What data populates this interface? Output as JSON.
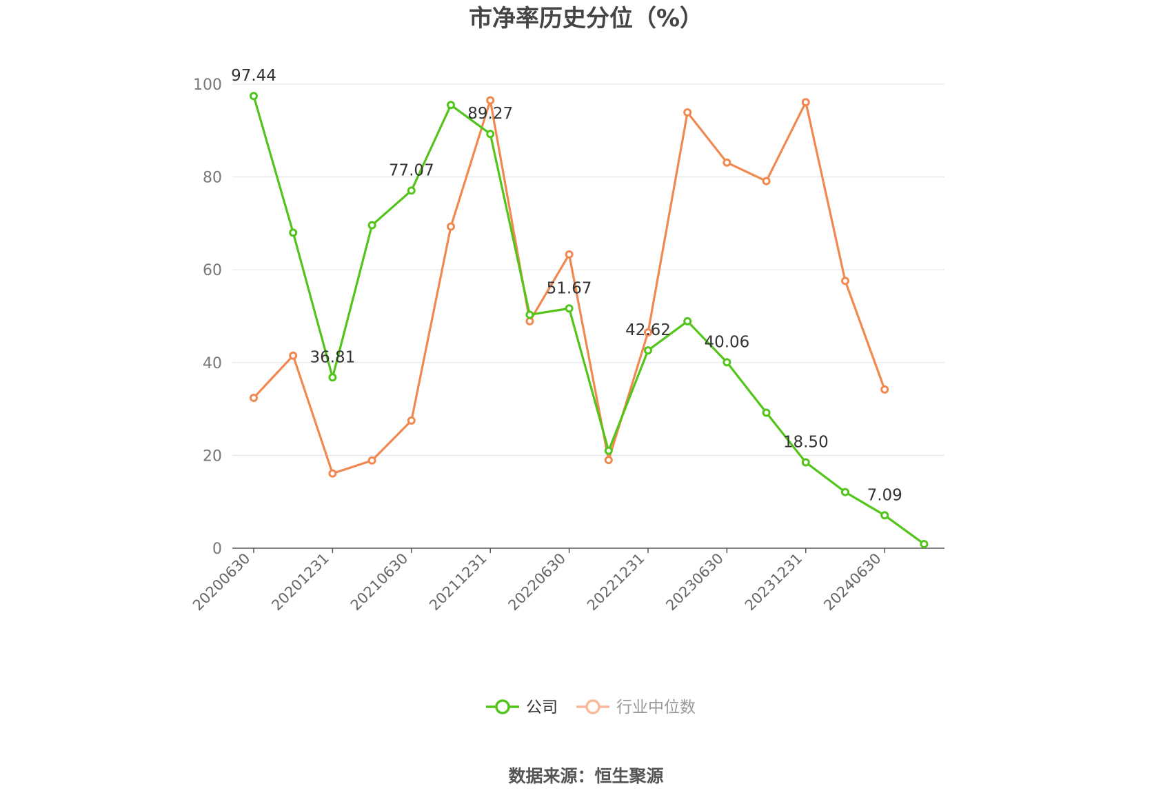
{
  "chart_data": {
    "type": "line",
    "title": "市净率历史分位（%）",
    "source": "数据来源：恒生聚源",
    "ylim": [
      0,
      100
    ],
    "yticks": [
      0,
      20,
      40,
      60,
      80,
      100
    ],
    "grid": true,
    "legend_position": "bottom-center",
    "x": [
      "20200630",
      "20200930",
      "20201231",
      "20210331",
      "20210630",
      "20210930",
      "20211231",
      "20220331",
      "20220630",
      "20220930",
      "20221231",
      "20230331",
      "20230630",
      "20230930",
      "20231231",
      "20240331",
      "20240630",
      "20240930"
    ],
    "x_tick_labels": [
      "20200630",
      "20201231",
      "20210630",
      "20211231",
      "20220630",
      "20221231",
      "20230630",
      "20231231",
      "20240630"
    ],
    "series": [
      {
        "name": "公司",
        "color": "#52c41a",
        "values": [
          97.44,
          68,
          36.81,
          69.6,
          77.07,
          95.5,
          89.27,
          50.3,
          51.67,
          21,
          42.62,
          48.9,
          40.06,
          29.2,
          18.5,
          12.1,
          7.09,
          0.9
        ],
        "labels": [
          "97.44",
          null,
          "36.81",
          null,
          "77.07",
          null,
          "89.27",
          null,
          "51.67",
          null,
          "42.62",
          null,
          "40.06",
          null,
          "18.50",
          null,
          "7.09",
          null
        ]
      },
      {
        "name": "行业中位数",
        "color": "#f0884f",
        "values": [
          32.4,
          41.5,
          16.1,
          18.9,
          27.5,
          69.3,
          96.5,
          48.9,
          63.3,
          19,
          46.5,
          93.9,
          83.1,
          79.1,
          96.1,
          57.6,
          34.2,
          null
        ]
      }
    ]
  }
}
